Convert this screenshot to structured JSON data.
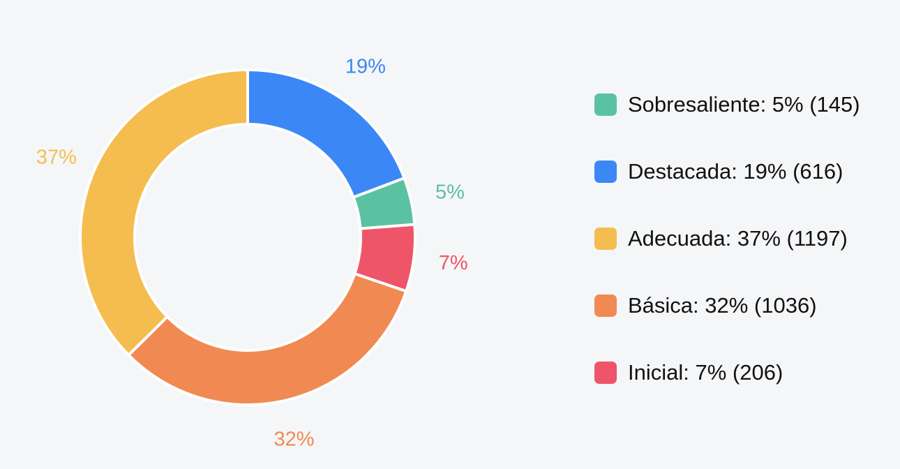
{
  "chart_data": {
    "type": "pie",
    "donut": true,
    "categories": [
      "Sobresaliente",
      "Destacada",
      "Adecuada",
      "Básica",
      "Inicial"
    ],
    "values": [
      145,
      616,
      1197,
      1036,
      206
    ],
    "slices": [
      {
        "name": "Sobresaliente",
        "value": 145,
        "percent_label": "5%",
        "legend_label": "Sobresaliente: 5% (145)",
        "color": "#5ac2a2"
      },
      {
        "name": "Destacada",
        "value": 616,
        "percent_label": "19%",
        "legend_label": "Destacada: 19% (616)",
        "color": "#3b87f5"
      },
      {
        "name": "Adecuada",
        "value": 1197,
        "percent_label": "37%",
        "legend_label": "Adecuada: 37% (1197)",
        "color": "#f5bd4f"
      },
      {
        "name": "Básica",
        "value": 1036,
        "percent_label": "32%",
        "legend_label": "Básica: 32% (1036)",
        "color": "#f08a52"
      },
      {
        "name": "Inicial",
        "value": 206,
        "percent_label": "7%",
        "legend_label": "Inicial: 7% (206)",
        "color": "#ee5568"
      }
    ],
    "legend_order": [
      "Sobresaliente",
      "Destacada",
      "Adecuada",
      "Básica",
      "Inicial"
    ],
    "drawing_order": [
      "Destacada",
      "Sobresaliente",
      "Inicial",
      "Básica",
      "Adecuada"
    ],
    "legend_position": "right",
    "title": ""
  }
}
